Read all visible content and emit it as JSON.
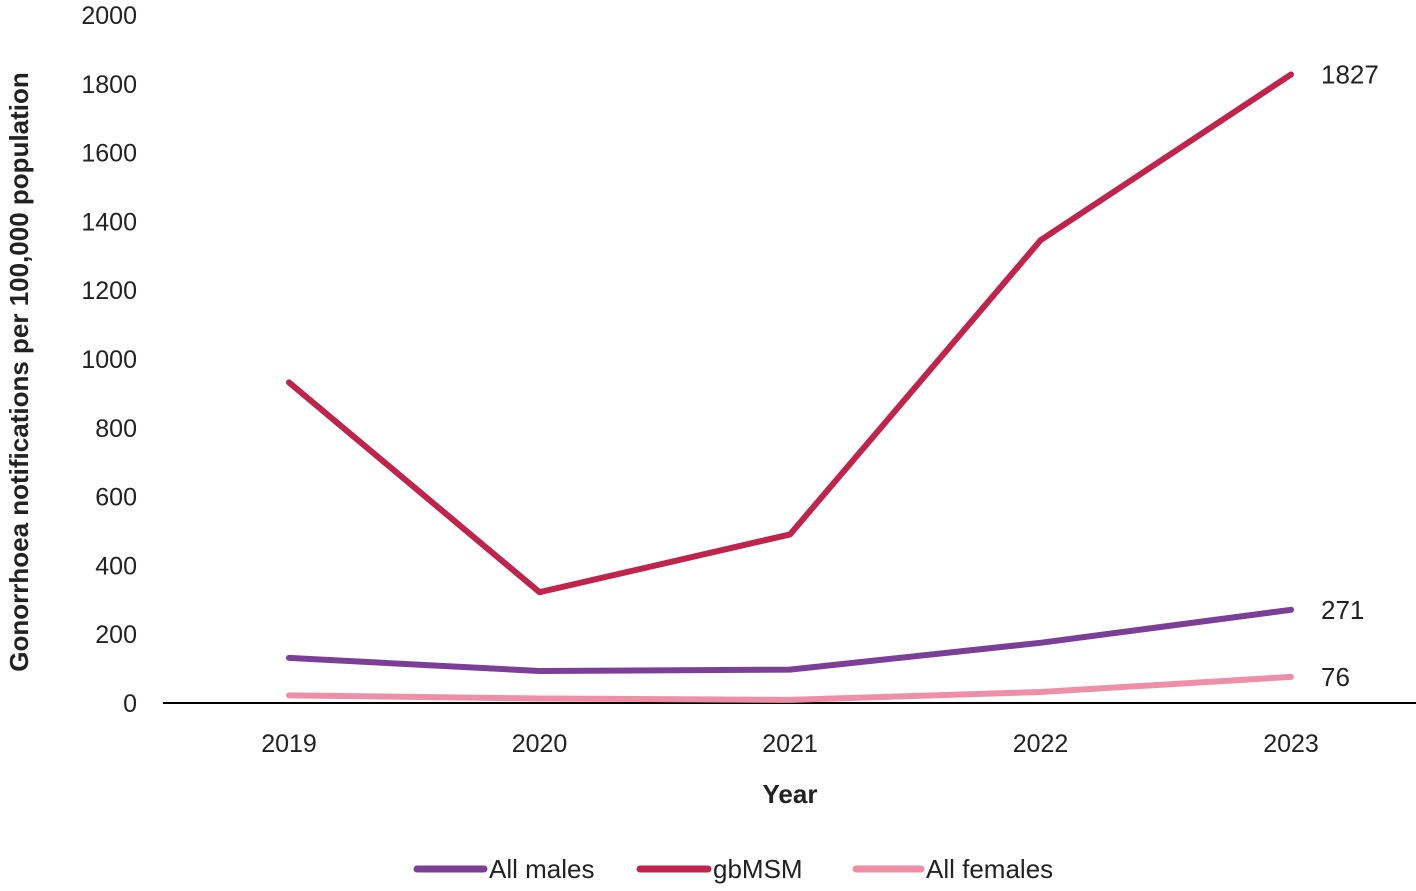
{
  "chart_data": {
    "type": "line",
    "title": "",
    "xlabel": "Year",
    "ylabel": "Gonorrhoea notifications per 100,000 population",
    "x": [
      "2019",
      "2020",
      "2021",
      "2022",
      "2023"
    ],
    "ylim": [
      0,
      2000
    ],
    "yticks": [
      0,
      200,
      400,
      600,
      800,
      1000,
      1200,
      1400,
      1600,
      1800,
      2000
    ],
    "grid": false,
    "legend_position": "bottom",
    "series": [
      {
        "name": "All males",
        "color": "#7B3F98",
        "values": [
          131,
          93,
          97,
          175,
          271
        ],
        "end_label": "271"
      },
      {
        "name": "gbMSM",
        "color": "#C0244C",
        "values": [
          932,
          322,
          490,
          1345,
          1827
        ],
        "end_label": "1827"
      },
      {
        "name": "All females",
        "color": "#EE8FA7",
        "values": [
          22,
          13,
          9,
          32,
          76
        ],
        "end_label": "76"
      }
    ]
  }
}
